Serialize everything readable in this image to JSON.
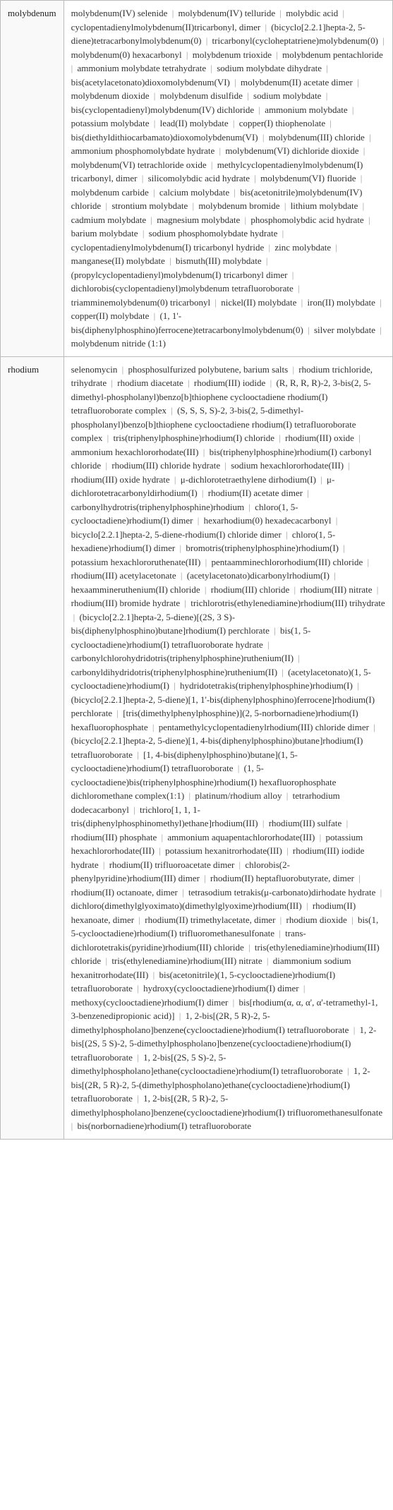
{
  "rows": [
    {
      "label": "molybdenum",
      "items": [
        "molybdenum(IV) selenide",
        "molybdenum(IV) telluride",
        "molybdic acid",
        "cyclopentadienylmolybdenum(II)tricarbonyl, dimer",
        "(bicyclo[2.2.1]hepta-2, 5-diene)tetracarbonylmolybdenum(0)",
        "tricarbonyl(cycloheptatriene)molybdenum(0)",
        "molybdenum(0) hexacarbonyl",
        "molybdenum trioxide",
        "molybdenum pentachloride",
        "ammonium molybdate tetrahydrate",
        "sodium molybdate dihydrate",
        "bis(acetylacetonato)dioxomolybdenum(VI)",
        "molybdenum(II) acetate dimer",
        "molybdenum dioxide",
        "molybdenum disulfide",
        "sodium molybdate",
        "bis(cyclopentadienyl)molybdenum(IV) dichloride",
        "ammonium molybdate",
        "potassium molybdate",
        "lead(II) molybdate",
        "copper(I) thiophenolate",
        "bis(diethyldithiocarbamato)dioxomolybdenum(VI)",
        "molybdenum(III) chloride",
        "ammonium phosphomolybdate hydrate",
        "molybdenum(VI) dichloride dioxide",
        "molybdenum(VI) tetrachloride oxide",
        "methylcyclopentadienylmolybdenum(I) tricarbonyl, dimer",
        "silicomolybdic acid hydrate",
        "molybdenum(VI) fluoride",
        "molybdenum carbide",
        "calcium molybdate",
        "bis(acetonitrile)molybdenum(IV) chloride",
        "strontium molybdate",
        "molybdenum bromide",
        "lithium molybdate",
        "cadmium molybdate",
        "magnesium molybdate",
        "phosphomolybdic acid hydrate",
        "barium molybdate",
        "sodium phosphomolybdate hydrate",
        "cyclopentadienylmolybdenum(I) tricarbonyl hydride",
        "zinc molybdate",
        "manganese(II) molybdate",
        "bismuth(III) molybdate",
        "(propylcyclopentadienyl)molybdenum(I) tricarbonyl dimer",
        "dichlorobis(cyclopentadienyl)molybdenum tetrafluoroborate",
        "triamminemolybdenum(0) tricarbonyl",
        "nickel(II) molybdate",
        "iron(II) molybdate",
        "copper(II) molybdate",
        "(1, 1'-bis(diphenylphosphino)ferrocene)tetracarbonylmolybdenum(0)",
        "silver molybdate",
        "molybdenum nitride (1:1)"
      ]
    },
    {
      "label": "rhodium",
      "items": [
        "selenomycin",
        "phosphosulfurized polybutene, barium salts",
        "rhodium trichloride, trihydrate",
        "rhodium diacetate",
        "rhodium(III) iodide",
        "(R, R, R, R)-2, 3-bis(2, 5-dimethyl-phospholanyl)benzo[b]thiophene cyclooctadiene rhodium(I) tetrafluoroborate complex",
        "(S, S, S, S)-2, 3-bis(2, 5-dimethyl-phospholanyl)benzo[b]thiophene cyclooctadiene rhodium(I) tetrafluoroborate complex",
        "tris(triphenylphosphine)rhodium(I) chloride",
        "rhodium(III) oxide",
        "ammonium hexachlororhodate(III)",
        "bis(triphenylphosphine)rhodium(I) carbonyl chloride",
        "rhodium(III) chloride hydrate",
        "sodium hexachlororhodate(III)",
        "rhodium(III) oxide hydrate",
        "μ-dichlorotetraethylene dirhodium(I)",
        "μ-dichlorotetracarbonyldirhodium(I)",
        "rhodium(II) acetate dimer",
        "carbonylhydrotris(triphenylphosphine)rhodium",
        "chloro(1, 5-cyclooctadiene)rhodium(I) dimer",
        "hexarhodium(0) hexadecacarbonyl",
        "bicyclo[2.2.1]hepta-2, 5-diene-rhodium(I) chloride dimer",
        "chloro(1, 5-hexadiene)rhodium(I) dimer",
        "bromotris(triphenylphosphine)rhodium(I)",
        "potassium hexachlororuthenate(III)",
        "pentaamminechlororhodium(III) chloride",
        "rhodium(III) acetylacetonate",
        "(acetylacetonato)dicarbonylrhodium(I)",
        "hexaammineruthenium(II) chloride",
        "rhodium(III) chloride",
        "rhodium(III) nitrate",
        "rhodium(III) bromide hydrate",
        "trichlorotris(ethylenediamine)rhodium(III) trihydrate",
        "(bicyclo[2.2.1]hepta-2, 5-diene)[(2S, 3 S)-bis(diphenylphosphino)butane]rhodium(I) perchlorate",
        "bis(1, 5-cyclooctadiene)rhodium(I) tetrafluoroborate hydrate",
        "carbonylchlorohydridotris(triphenylphosphine)ruthenium(II)",
        "carbonyldihydridotris(triphenylphosphine)ruthenium(II)",
        "(acetylacetonato)(1, 5-cyclooctadiene)rhodium(I)",
        "hydridotetrakis(triphenylphosphine)rhodium(I)",
        "(bicyclo[2.2.1]hepta-2, 5-diene)[1, 1'-bis(diphenylphosphino)ferrocene]rhodium(I) perchlorate",
        "[tris(dimethylphenylphosphine)](2, 5-norbornadiene)rhodium(I) hexafluorophosphate",
        "pentamethylcyclopentadienylrhodium(III) chloride dimer",
        "(bicyclo[2.2.1]hepta-2, 5-diene)[1, 4-bis(diphenylphosphino)butane]rhodium(I) tetrafluoroborate",
        "[1, 4-bis(diphenylphosphino)butane](1, 5-cyclooctadiene)rhodium(I) tetrafluoroborate",
        "(1, 5-cyclooctadiene)bis(triphenylphosphine)rhodium(I) hexafluorophosphate dichloromethane complex(1:1)",
        "platinum/rhodium alloy",
        "tetrarhodium dodecacarbonyl",
        "trichloro[1, 1, 1-tris(diphenylphosphinomethyl)ethane]rhodium(III)",
        "rhodium(III) sulfate",
        "rhodium(III) phosphate",
        "ammonium aquapentachlororhodate(III)",
        "potassium hexachlororhodate(III)",
        "potassium hexanitrorhodate(III)",
        "rhodium(III) iodide hydrate",
        "rhodium(II) trifluoroacetate dimer",
        "chlorobis(2-phenylpyridine)rhodium(III) dimer",
        "rhodium(II) heptafluorobutyrate, dimer",
        "rhodium(II) octanoate, dimer",
        "tetrasodium tetrakis(μ-carbonato)dirhodate hydrate",
        "dichloro(dimethylglyoximato)(dimethylglyoxime)rhodium(III)",
        "rhodium(II) hexanoate, dimer",
        "rhodium(II) trimethylacetate, dimer",
        "rhodium dioxide",
        "bis(1, 5-cyclooctadiene)rhodium(I) trifluoromethanesulfonate",
        "trans-dichlorotetrakis(pyridine)rhodium(III) chloride",
        "tris(ethylenediamine)rhodium(III) chloride",
        "tris(ethylenediamine)rhodium(III) nitrate",
        "diammonium sodium hexanitrorhodate(III)",
        "bis(acetonitrile)(1, 5-cyclooctadiene)rhodium(I) tetrafluoroborate",
        "hydroxy(cyclooctadiene)rhodium(I) dimer",
        "methoxy(cyclooctadiene)rhodium(I) dimer",
        "bis[rhodium(α, α, α', α'-tetramethyl-1, 3-benzenedipropionic acid)]",
        "1, 2-bis[(2R, 5 R)-2, 5-dimethylphospholano]benzene(cyclooctadiene)rhodium(I) tetrafluoroborate",
        "1, 2-bis[(2S, 5 S)-2, 5-dimethylphospholano]benzene(cyclooctadiene)rhodium(I) tetrafluoroborate",
        "1, 2-bis[(2S, 5 S)-2, 5-dimethylphospholano]ethane(cyclooctadiene)rhodium(I) tetrafluoroborate",
        "1, 2-bis[(2R, 5 R)-2, 5-(dimethylphospholano)ethane(cyclooctadiene)rhodium(I) tetrafluoroborate",
        "1, 2-bis[(2R, 5 R)-2, 5-dimethylphospholano]benzene(cyclooctadiene)rhodium(I) trifluoromethanesulfonate",
        "bis(norbornadiene)rhodium(I) tetrafluoroborate"
      ]
    }
  ],
  "separator": "|",
  "colors": {
    "border": "#bbbbbb",
    "label_bg": "#f9f9f9",
    "text": "#333333",
    "sep": "#999999"
  }
}
